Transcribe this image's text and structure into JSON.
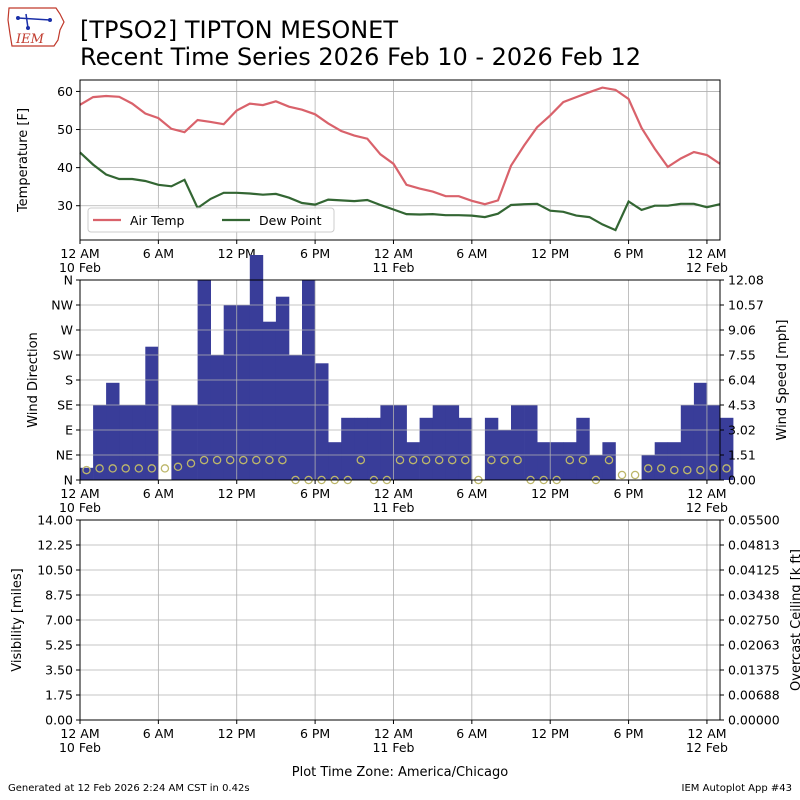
{
  "header": {
    "title_line1": "[TPSO2] TIPTON MESONET",
    "title_line2": "Recent Time Series 2026 Feb 10 - 2026 Feb 12",
    "logo_text": "IEM"
  },
  "footer": {
    "generated": "Generated at 12 Feb 2026 2:24 AM CST in 0.42s",
    "app": "IEM Autoplot App #43",
    "timezone_label": "Plot Time Zone: America/Chicago"
  },
  "colors": {
    "air_temp": "#d9626b",
    "dew_point": "#336633",
    "wind_bar": "#393d99",
    "gust_marker": "#bdb76b",
    "ceiling_axis": "#008000",
    "grid": "#b0b0b0"
  },
  "chart_data": [
    {
      "type": "line",
      "title": "",
      "xlabel": "",
      "ylabel": "Temperature [F]",
      "xlim_hours": [
        0,
        49
      ],
      "ylim": [
        21,
        63
      ],
      "yticks": [
        30,
        40,
        50,
        60
      ],
      "grid": true,
      "legend": "lower-left",
      "series": [
        {
          "name": "Air Temp",
          "x_hours": [
            0,
            1,
            2,
            3,
            4,
            5,
            6,
            7,
            8,
            9,
            10,
            11,
            12,
            13,
            14,
            15,
            16,
            17,
            18,
            19,
            20,
            21,
            22,
            23,
            24,
            25,
            26,
            27,
            28,
            29,
            30,
            31,
            32,
            33,
            34,
            35,
            36,
            37,
            38,
            39,
            40,
            41,
            42,
            43,
            44,
            45,
            46,
            47,
            48,
            49
          ],
          "values": [
            56.5,
            58.5,
            58.8,
            58.6,
            56.8,
            54.2,
            53.0,
            50.2,
            49.3,
            52.5,
            52.0,
            51.4,
            55.0,
            56.8,
            56.4,
            57.4,
            56.0,
            55.2,
            54.0,
            51.6,
            49.6,
            48.4,
            47.6,
            43.5,
            41.0,
            35.5,
            34.5,
            33.7,
            32.5,
            32.5,
            31.3,
            30.4,
            31.4,
            40.5,
            45.8,
            50.6,
            53.7,
            57.2,
            58.5,
            59.8,
            61.0,
            60.4,
            58.0,
            50.4,
            45.0,
            40.2,
            42.4,
            44.1,
            43.3,
            41.0
          ]
        },
        {
          "name": "Dew Point",
          "x_hours": [
            0,
            1,
            2,
            3,
            4,
            5,
            6,
            7,
            8,
            9,
            10,
            11,
            12,
            13,
            14,
            15,
            16,
            17,
            18,
            19,
            20,
            21,
            22,
            23,
            24,
            25,
            26,
            27,
            28,
            29,
            30,
            31,
            32,
            33,
            34,
            35,
            36,
            37,
            38,
            39,
            40,
            41,
            42,
            43,
            44,
            45,
            46,
            47,
            48,
            49
          ],
          "values": [
            44.0,
            40.8,
            38.2,
            37.0,
            37.0,
            36.5,
            35.5,
            35.1,
            36.8,
            29.4,
            31.8,
            33.4,
            33.4,
            33.2,
            32.9,
            33.1,
            32.1,
            30.7,
            30.3,
            31.6,
            31.4,
            31.2,
            31.5,
            30.2,
            29.0,
            27.8,
            27.7,
            27.8,
            27.5,
            27.5,
            27.4,
            27.0,
            27.9,
            30.2,
            30.4,
            30.5,
            28.7,
            28.4,
            27.4,
            27.0,
            25.1,
            23.6,
            31.1,
            28.9,
            30.0,
            30.0,
            30.5,
            30.5,
            29.6,
            30.4
          ]
        }
      ]
    },
    {
      "type": "bar",
      "title": "",
      "xlabel": "",
      "ylabel": "Wind Direction",
      "y2label": "Wind Speed [mph]",
      "xlim_hours": [
        0,
        49
      ],
      "ylim": [
        0,
        12.08
      ],
      "dir_ticks": [
        "N",
        "NE",
        "E",
        "SE",
        "S",
        "SW",
        "W",
        "NW",
        "N"
      ],
      "speed_ticks": [
        "0.00",
        "1.51",
        "3.02",
        "4.53",
        "6.04",
        "7.55",
        "9.06",
        "10.57",
        "12.08"
      ],
      "grid": true,
      "bar_width_hours": 1,
      "series": [
        {
          "name": "",
          "description": "wind direction bars (degrees)",
          "x_hours": [
            0,
            1,
            2,
            3,
            4,
            5,
            6,
            7,
            8,
            9,
            10,
            11,
            12,
            13,
            14,
            15,
            16,
            17,
            18,
            19,
            20,
            21,
            22,
            23,
            24,
            25,
            26,
            27,
            28,
            29,
            30,
            31,
            32,
            33,
            34,
            35,
            36,
            37,
            38,
            39,
            40,
            41,
            42,
            43,
            44,
            45,
            46,
            47,
            48,
            49
          ],
          "values": [
            22,
            135,
            175,
            135,
            135,
            240,
            0,
            135,
            135,
            360,
            225,
            315,
            315,
            405,
            285,
            330,
            225,
            360,
            210,
            68,
            112,
            112,
            112,
            135,
            135,
            68,
            112,
            135,
            135,
            112,
            0,
            112,
            90,
            135,
            135,
            68,
            68,
            68,
            112,
            45,
            68,
            0,
            0,
            45,
            68,
            68,
            135,
            175,
            135,
            112
          ]
        },
        {
          "name": "",
          "description": "wind speed circles (mph)",
          "x_hours": [
            0,
            1,
            2,
            3,
            4,
            5,
            6,
            7,
            8,
            9,
            10,
            11,
            12,
            13,
            14,
            15,
            16,
            17,
            18,
            19,
            20,
            21,
            22,
            23,
            24,
            25,
            26,
            27,
            28,
            29,
            30,
            31,
            32,
            33,
            34,
            35,
            36,
            37,
            38,
            39,
            40,
            41,
            42,
            43,
            44,
            45,
            46,
            47,
            48,
            49
          ],
          "values": [
            0.6,
            0.7,
            0.7,
            0.7,
            0.7,
            0.7,
            0.7,
            0.8,
            1.0,
            1.2,
            1.2,
            1.2,
            1.2,
            1.2,
            1.2,
            1.2,
            0,
            0,
            0,
            0,
            0,
            1.2,
            0,
            0,
            1.2,
            1.2,
            1.2,
            1.2,
            1.2,
            1.2,
            0,
            1.2,
            1.2,
            1.2,
            0,
            0,
            0,
            1.2,
            1.2,
            0,
            1.2,
            0.3,
            0.3,
            0.7,
            0.7,
            0.6,
            0.6,
            0.6,
            0.7,
            0.7
          ]
        }
      ]
    },
    {
      "type": "line",
      "title": "",
      "xlabel": "",
      "ylabel": "Visibility [miles]",
      "y2label": "Overcast Ceiling [k ft]",
      "xlim_hours": [
        0,
        49
      ],
      "ylim": [
        0,
        14
      ],
      "y2lim": [
        0,
        0.055
      ],
      "yticks": [
        "0.00",
        "1.75",
        "3.50",
        "5.25",
        "7.00",
        "8.75",
        "10.50",
        "12.25",
        "14.00"
      ],
      "y2ticks": [
        "0.00000",
        "0.00688",
        "0.01375",
        "0.02063",
        "0.02750",
        "0.03438",
        "0.04125",
        "0.04813",
        "0.05500"
      ],
      "grid": true,
      "series": []
    }
  ],
  "x_axis": {
    "ticks": [
      {
        "hour": 0,
        "label": "12 AM",
        "sub": "10 Feb"
      },
      {
        "hour": 6,
        "label": "6 AM",
        "sub": ""
      },
      {
        "hour": 12,
        "label": "12 PM",
        "sub": ""
      },
      {
        "hour": 18,
        "label": "6 PM",
        "sub": ""
      },
      {
        "hour": 24,
        "label": "12 AM",
        "sub": "11 Feb"
      },
      {
        "hour": 30,
        "label": "6 AM",
        "sub": ""
      },
      {
        "hour": 36,
        "label": "12 PM",
        "sub": ""
      },
      {
        "hour": 42,
        "label": "6 PM",
        "sub": ""
      },
      {
        "hour": 48,
        "label": "12 AM",
        "sub": "12 Feb"
      }
    ]
  }
}
